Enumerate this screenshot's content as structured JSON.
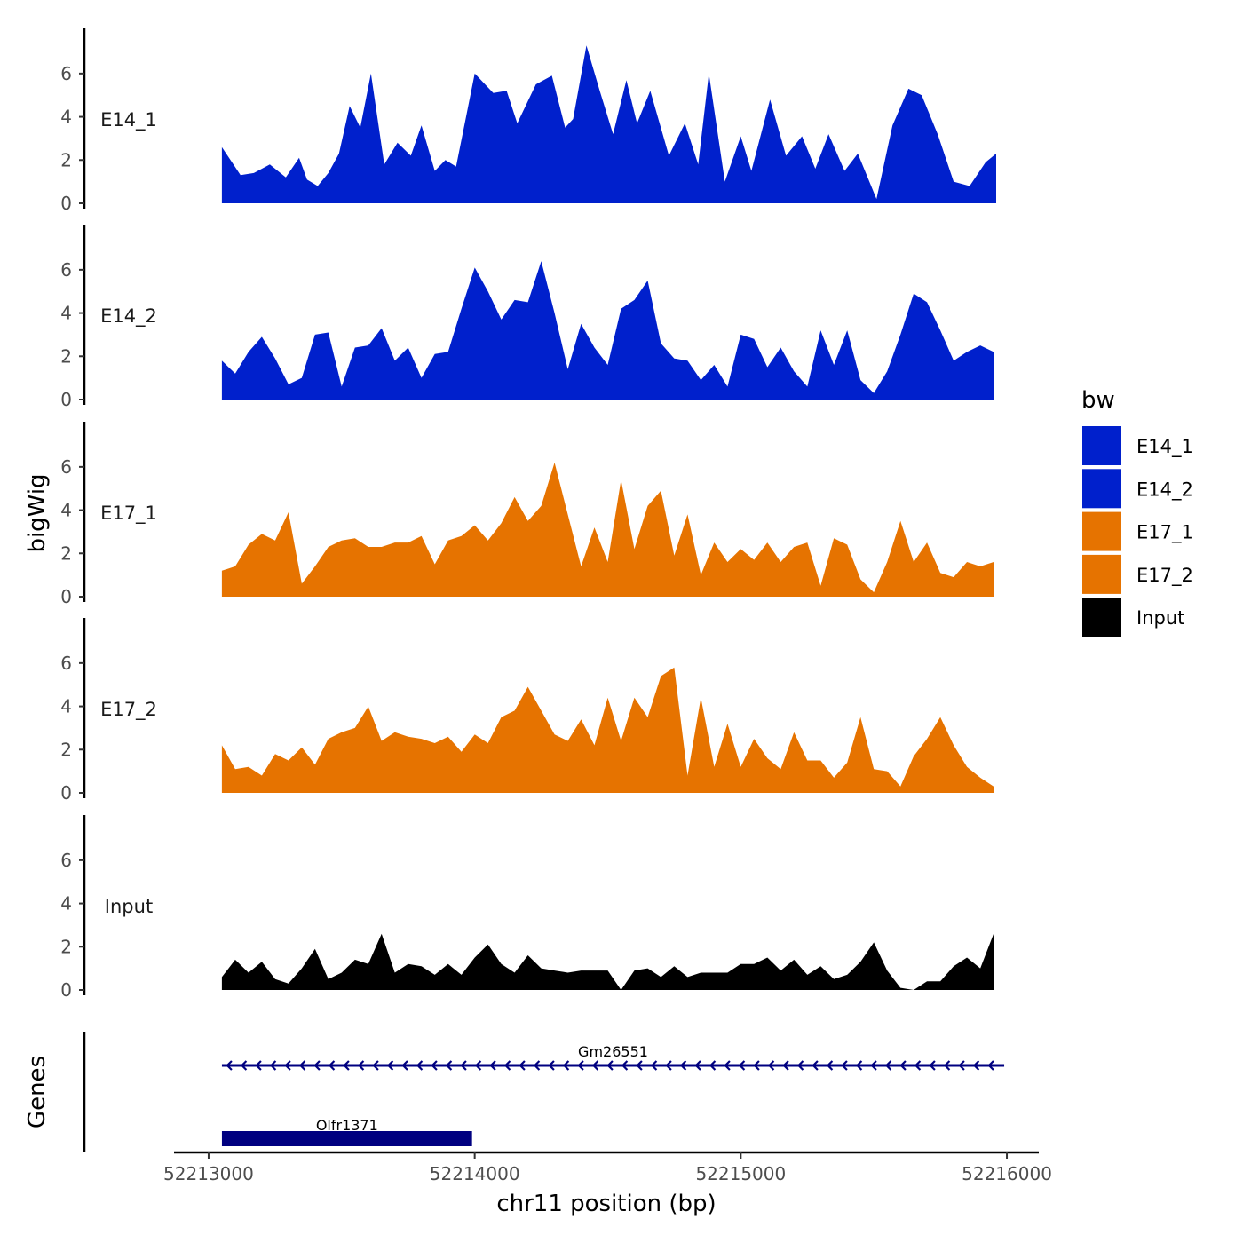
{
  "chart_data": {
    "type": "area",
    "ylabel": "bigWig",
    "gene_track_label": "Genes",
    "xlabel": "chr11 position (bp)",
    "xlim": [
      52212870,
      52216120
    ],
    "ylim": [
      0,
      7.8
    ],
    "x_tick_values": [
      52213000,
      52214000,
      52215000,
      52216000
    ],
    "x_tick_labels": [
      "52213000",
      "52214000",
      "52215000",
      "52216000"
    ],
    "y_tick_values": [
      0,
      2,
      4,
      6
    ],
    "y_tick_labels": [
      "0",
      "2",
      "4",
      "6"
    ],
    "legend": {
      "title": "bw",
      "position": "right",
      "entries": [
        {
          "label": "E14_1",
          "color": "#0020CC"
        },
        {
          "label": "E14_2",
          "color": "#0020CC"
        },
        {
          "label": "E17_1",
          "color": "#E67300"
        },
        {
          "label": "E17_2",
          "color": "#E67300"
        },
        {
          "label": "Input",
          "color": "#000000"
        }
      ]
    },
    "series": [
      {
        "name": "E14_1",
        "color": "#0020CC",
        "x": [
          52213050,
          52213120,
          52213170,
          52213230,
          52213290,
          52213340,
          52213370,
          52213410,
          52213450,
          52213490,
          52213530,
          52213570,
          52213610,
          52213660,
          52213710,
          52213760,
          52213800,
          52213850,
          52213890,
          52213930,
          52214000,
          52214070,
          52214120,
          52214160,
          52214230,
          52214290,
          52214340,
          52214370,
          52214420,
          52214470,
          52214520,
          52214570,
          52214610,
          52214660,
          52214730,
          52214790,
          52214840,
          52214880,
          52214940,
          52215000,
          52215040,
          52215110,
          52215170,
          52215230,
          52215280,
          52215330,
          52215390,
          52215440,
          52215510,
          52215570,
          52215630,
          52215680,
          52215740,
          52215800,
          52215860,
          52215920,
          52215960
        ],
        "values": [
          2.6,
          1.3,
          1.4,
          1.8,
          1.2,
          2.1,
          1.1,
          0.8,
          1.4,
          2.3,
          4.5,
          3.5,
          6.0,
          1.8,
          2.8,
          2.2,
          3.6,
          1.5,
          2.0,
          1.7,
          6.0,
          5.1,
          5.2,
          3.7,
          5.5,
          5.9,
          3.5,
          3.9,
          7.3,
          5.2,
          3.2,
          5.7,
          3.7,
          5.2,
          2.2,
          3.7,
          1.8,
          6.0,
          1.0,
          3.1,
          1.5,
          4.8,
          2.2,
          3.1,
          1.6,
          3.2,
          1.5,
          2.3,
          0.2,
          3.6,
          5.3,
          5.0,
          3.2,
          1.0,
          0.8,
          1.9,
          2.3
        ]
      },
      {
        "name": "E14_2",
        "color": "#0020CC",
        "x": [
          52213050,
          52213100,
          52213150,
          52213200,
          52213250,
          52213300,
          52213350,
          52213400,
          52213450,
          52213500,
          52213550,
          52213600,
          52213650,
          52213700,
          52213750,
          52213800,
          52213850,
          52213900,
          52213950,
          52214000,
          52214050,
          52214100,
          52214150,
          52214200,
          52214250,
          52214300,
          52214350,
          52214400,
          52214450,
          52214500,
          52214550,
          52214600,
          52214650,
          52214700,
          52214750,
          52214800,
          52214850,
          52214900,
          52214950,
          52215000,
          52215050,
          52215100,
          52215150,
          52215200,
          52215250,
          52215300,
          52215350,
          52215400,
          52215450,
          52215500,
          52215550,
          52215600,
          52215650,
          52215700,
          52215750,
          52215800,
          52215850,
          52215900,
          52215950
        ],
        "values": [
          1.8,
          1.2,
          2.2,
          2.9,
          1.9,
          0.7,
          1.0,
          3.0,
          3.1,
          0.6,
          2.4,
          2.5,
          3.3,
          1.8,
          2.4,
          1.0,
          2.1,
          2.2,
          4.2,
          6.1,
          5.0,
          3.7,
          4.6,
          4.5,
          6.4,
          4.0,
          1.4,
          3.5,
          2.4,
          1.6,
          4.2,
          4.6,
          5.5,
          2.6,
          1.9,
          1.8,
          0.9,
          1.6,
          0.6,
          3.0,
          2.8,
          1.5,
          2.4,
          1.3,
          0.6,
          3.2,
          1.6,
          3.2,
          0.9,
          0.3,
          1.3,
          3.0,
          4.9,
          4.5,
          3.2,
          1.8,
          2.2,
          2.5,
          2.2
        ]
      },
      {
        "name": "E17_1",
        "color": "#E67300",
        "x": [
          52213050,
          52213100,
          52213150,
          52213200,
          52213250,
          52213300,
          52213350,
          52213400,
          52213450,
          52213500,
          52213550,
          52213600,
          52213650,
          52213700,
          52213750,
          52213800,
          52213850,
          52213900,
          52213950,
          52214000,
          52214050,
          52214100,
          52214150,
          52214200,
          52214250,
          52214300,
          52214350,
          52214400,
          52214450,
          52214500,
          52214550,
          52214600,
          52214650,
          52214700,
          52214750,
          52214800,
          52214850,
          52214900,
          52214950,
          52215000,
          52215050,
          52215100,
          52215150,
          52215200,
          52215250,
          52215300,
          52215350,
          52215400,
          52215450,
          52215500,
          52215550,
          52215600,
          52215650,
          52215700,
          52215750,
          52215800,
          52215850,
          52215900,
          52215950
        ],
        "values": [
          1.2,
          1.4,
          2.4,
          2.9,
          2.6,
          3.9,
          0.6,
          1.4,
          2.3,
          2.6,
          2.7,
          2.3,
          2.3,
          2.5,
          2.5,
          2.8,
          1.5,
          2.6,
          2.8,
          3.3,
          2.6,
          3.4,
          4.6,
          3.5,
          4.2,
          6.2,
          3.8,
          1.4,
          3.2,
          1.6,
          5.4,
          2.2,
          4.2,
          4.9,
          1.9,
          3.8,
          1.0,
          2.5,
          1.6,
          2.2,
          1.7,
          2.5,
          1.6,
          2.3,
          2.5,
          0.5,
          2.7,
          2.4,
          0.8,
          0.2,
          1.6,
          3.5,
          1.6,
          2.5,
          1.1,
          0.9,
          1.6,
          1.4,
          1.6
        ]
      },
      {
        "name": "E17_2",
        "color": "#E67300",
        "x": [
          52213050,
          52213100,
          52213150,
          52213200,
          52213250,
          52213300,
          52213350,
          52213400,
          52213450,
          52213500,
          52213550,
          52213600,
          52213650,
          52213700,
          52213750,
          52213800,
          52213850,
          52213900,
          52213950,
          52214000,
          52214050,
          52214100,
          52214150,
          52214200,
          52214250,
          52214300,
          52214350,
          52214400,
          52214450,
          52214500,
          52214550,
          52214600,
          52214650,
          52214700,
          52214750,
          52214800,
          52214850,
          52214900,
          52214950,
          52215000,
          52215050,
          52215100,
          52215150,
          52215200,
          52215250,
          52215300,
          52215350,
          52215400,
          52215450,
          52215500,
          52215550,
          52215600,
          52215650,
          52215700,
          52215750,
          52215800,
          52215850,
          52215900,
          52215950
        ],
        "values": [
          2.2,
          1.1,
          1.2,
          0.8,
          1.8,
          1.5,
          2.1,
          1.3,
          2.5,
          2.8,
          3.0,
          4.0,
          2.4,
          2.8,
          2.6,
          2.5,
          2.3,
          2.6,
          1.9,
          2.7,
          2.3,
          3.5,
          3.8,
          4.9,
          3.8,
          2.7,
          2.4,
          3.4,
          2.2,
          4.4,
          2.4,
          4.4,
          3.5,
          5.4,
          5.8,
          0.8,
          4.4,
          1.2,
          3.2,
          1.2,
          2.5,
          1.6,
          1.1,
          2.8,
          1.5,
          1.5,
          0.7,
          1.4,
          3.5,
          1.1,
          1.0,
          0.3,
          1.7,
          2.5,
          3.5,
          2.2,
          1.2,
          0.7,
          0.3
        ]
      },
      {
        "name": "Input",
        "color": "#000000",
        "x": [
          52213050,
          52213100,
          52213150,
          52213200,
          52213250,
          52213300,
          52213350,
          52213400,
          52213450,
          52213500,
          52213550,
          52213600,
          52213650,
          52213700,
          52213750,
          52213800,
          52213850,
          52213900,
          52213950,
          52214000,
          52214050,
          52214100,
          52214150,
          52214200,
          52214250,
          52214300,
          52214350,
          52214400,
          52214450,
          52214500,
          52214550,
          52214600,
          52214650,
          52214700,
          52214750,
          52214800,
          52214850,
          52214900,
          52214950,
          52215000,
          52215050,
          52215100,
          52215150,
          52215200,
          52215250,
          52215300,
          52215350,
          52215400,
          52215450,
          52215500,
          52215550,
          52215600,
          52215650,
          52215700,
          52215750,
          52215800,
          52215850,
          52215900,
          52215950
        ],
        "values": [
          0.6,
          1.4,
          0.8,
          1.3,
          0.5,
          0.3,
          1.0,
          1.9,
          0.5,
          0.8,
          1.4,
          1.2,
          2.6,
          0.8,
          1.2,
          1.1,
          0.7,
          1.2,
          0.7,
          1.5,
          2.1,
          1.2,
          0.8,
          1.6,
          1.0,
          0.9,
          0.8,
          0.9,
          0.9,
          0.9,
          0.0,
          0.9,
          1.0,
          0.6,
          1.1,
          0.6,
          0.8,
          0.8,
          0.8,
          1.2,
          1.2,
          1.5,
          0.9,
          1.4,
          0.7,
          1.1,
          0.5,
          0.7,
          1.3,
          2.2,
          0.9,
          0.1,
          0.0,
          0.4,
          0.4,
          1.1,
          1.5,
          1.0,
          2.6
        ]
      }
    ],
    "genes": [
      {
        "name": "Gm26551",
        "start": 52213050,
        "end": 52215990,
        "strand": "-",
        "style": "line"
      },
      {
        "name": "Olfr1371",
        "start": 52213050,
        "end": 52213990,
        "strand": "-",
        "style": "block"
      }
    ],
    "gene_color": "#000080"
  }
}
